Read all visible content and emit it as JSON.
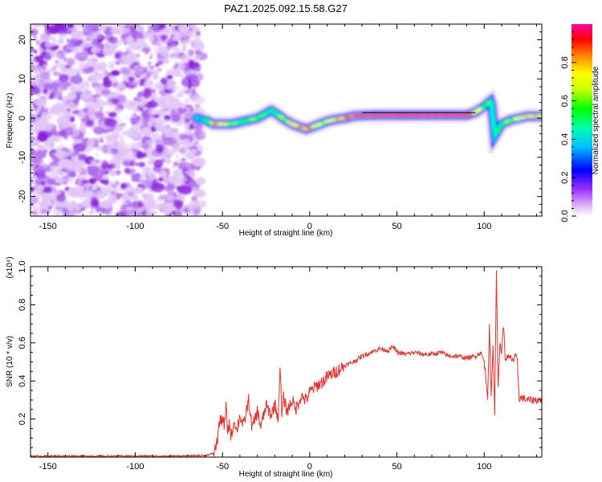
{
  "title": "PAZ1.2025.092.15.58.G27",
  "chart_data": [
    {
      "type": "heatmap",
      "xlabel": "Height of straight line (km)",
      "ylabel": "Frequency (Hz)",
      "xlim": [
        -160,
        133
      ],
      "ylim": [
        -25,
        24
      ],
      "xticks": [
        -150,
        -100,
        -50,
        0,
        50,
        100
      ],
      "yticks": [
        -20,
        -10,
        0,
        10,
        20
      ],
      "colorbar": {
        "label": "Normalized spectral amplitude",
        "range": [
          0,
          1
        ],
        "ticks": [
          0.0,
          0.2,
          0.4,
          0.6,
          0.8
        ],
        "colormap": [
          "#e7c9f5",
          "#8a2be2",
          "#0000ff",
          "#00d0ff",
          "#00ff60",
          "#80ff00",
          "#ffff00",
          "#ff8000",
          "#ff0000",
          "#ff0080"
        ]
      },
      "noise_region_x": [
        -160,
        -62
      ],
      "noise_color": "#8a2be2",
      "ridge": {
        "x": [
          -65,
          -60,
          -55,
          -50,
          -45,
          -40,
          -35,
          -30,
          -25,
          -22,
          -18,
          -14,
          -10,
          -6,
          -2,
          2,
          6,
          10,
          15,
          20,
          25,
          30,
          40,
          50,
          60,
          70,
          80,
          90,
          95,
          100,
          104,
          106,
          110,
          115,
          120,
          125,
          133
        ],
        "y": [
          0,
          -0.5,
          -1.5,
          -1.5,
          -1.5,
          -1,
          -0.5,
          0,
          1.2,
          2,
          0.8,
          -0.5,
          -1.5,
          -2.2,
          -2.8,
          -2.2,
          -1.5,
          -0.8,
          -0.3,
          0,
          0.5,
          0.7,
          0.8,
          0.8,
          0.8,
          0.8,
          0.8,
          0.8,
          1.5,
          3,
          4.5,
          -4.5,
          -1.5,
          -0.5,
          0,
          0.5,
          0.5
        ],
        "amplitude": [
          0.3,
          0.4,
          0.75,
          0.7,
          0.55,
          0.45,
          0.5,
          0.55,
          0.45,
          0.4,
          0.5,
          0.6,
          0.7,
          0.75,
          0.8,
          0.7,
          0.6,
          0.65,
          0.7,
          0.8,
          0.85,
          0.9,
          0.9,
          0.92,
          0.92,
          0.95,
          0.92,
          0.9,
          0.7,
          0.55,
          0.45,
          0.45,
          0.5,
          0.55,
          0.65,
          0.7,
          0.7
        ]
      },
      "dashed_lines": [
        {
          "x": [
            30,
            95
          ],
          "y": [
            1.4,
            1.4
          ]
        }
      ]
    },
    {
      "type": "line",
      "xlabel": "Height of straight line (km)",
      "ylabel": "SNR (10 * v/v)",
      "yscale_label": "(x10⁴)",
      "xlim": [
        -160,
        133
      ],
      "ylim": [
        0,
        1.0
      ],
      "xticks": [
        -150,
        -100,
        -50,
        0,
        50,
        100
      ],
      "yticks": [
        0.2,
        0.4,
        0.6,
        0.8,
        1.0
      ],
      "ytick_labels": [
        "0.2",
        "0.4",
        "0.6",
        "0.8",
        "1.0"
      ],
      "series": [
        {
          "color": "#e8312a",
          "x": [
            -160,
            -140,
            -120,
            -100,
            -80,
            -60,
            -55,
            -53,
            -52,
            -50,
            -49,
            -48,
            -47,
            -46,
            -45,
            -44,
            -43,
            -42,
            -40,
            -38,
            -35,
            -33,
            -30,
            -28,
            -25,
            -22,
            -20,
            -18,
            -17,
            -16,
            -15,
            -13,
            -10,
            -8,
            -5,
            -2,
            0,
            2,
            5,
            8,
            10,
            15,
            20,
            25,
            30,
            35,
            40,
            45,
            48,
            50,
            55,
            60,
            65,
            70,
            75,
            80,
            85,
            90,
            95,
            98,
            100,
            102,
            103,
            104,
            105,
            106,
            107,
            108,
            109,
            110,
            111,
            112,
            115,
            117,
            118,
            119,
            120,
            122,
            125,
            130,
            133
          ],
          "y": [
            0.005,
            0.006,
            0.005,
            0.006,
            0.005,
            0.008,
            0.02,
            0.08,
            0.17,
            0.21,
            0.15,
            0.27,
            0.13,
            0.18,
            0.1,
            0.16,
            0.2,
            0.13,
            0.22,
            0.16,
            0.3,
            0.15,
            0.24,
            0.16,
            0.27,
            0.22,
            0.28,
            0.2,
            0.49,
            0.22,
            0.31,
            0.24,
            0.3,
            0.25,
            0.32,
            0.3,
            0.34,
            0.36,
            0.38,
            0.4,
            0.42,
            0.45,
            0.48,
            0.5,
            0.53,
            0.55,
            0.57,
            0.56,
            0.58,
            0.55,
            0.54,
            0.55,
            0.54,
            0.54,
            0.55,
            0.53,
            0.53,
            0.52,
            0.53,
            0.55,
            0.5,
            0.32,
            0.68,
            0.3,
            0.6,
            0.22,
            1.0,
            0.35,
            0.6,
            0.55,
            0.7,
            0.52,
            0.52,
            0.51,
            0.53,
            0.5,
            0.31,
            0.31,
            0.3,
            0.3,
            0.3
          ]
        }
      ]
    }
  ]
}
